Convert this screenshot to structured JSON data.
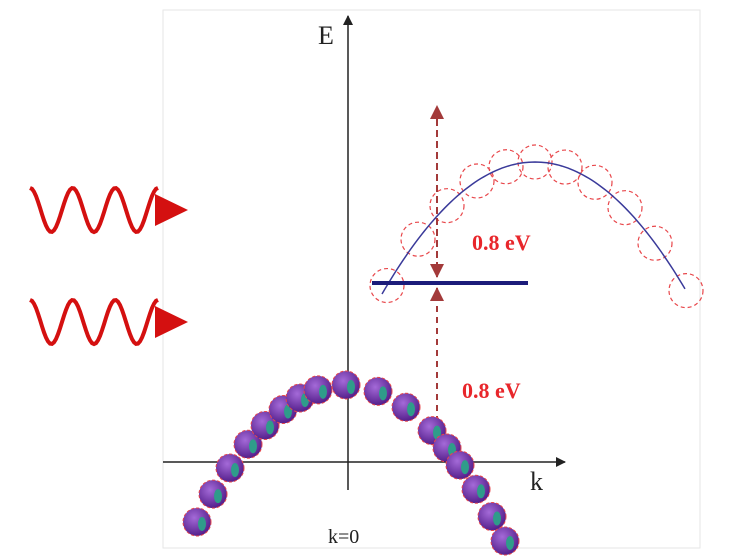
{
  "axes": {
    "y_label": "E",
    "x_label": "k",
    "origin_label": "k=0"
  },
  "annotations": [
    {
      "label": "0.8 eV"
    },
    {
      "label": "0.8 eV"
    }
  ]
}
